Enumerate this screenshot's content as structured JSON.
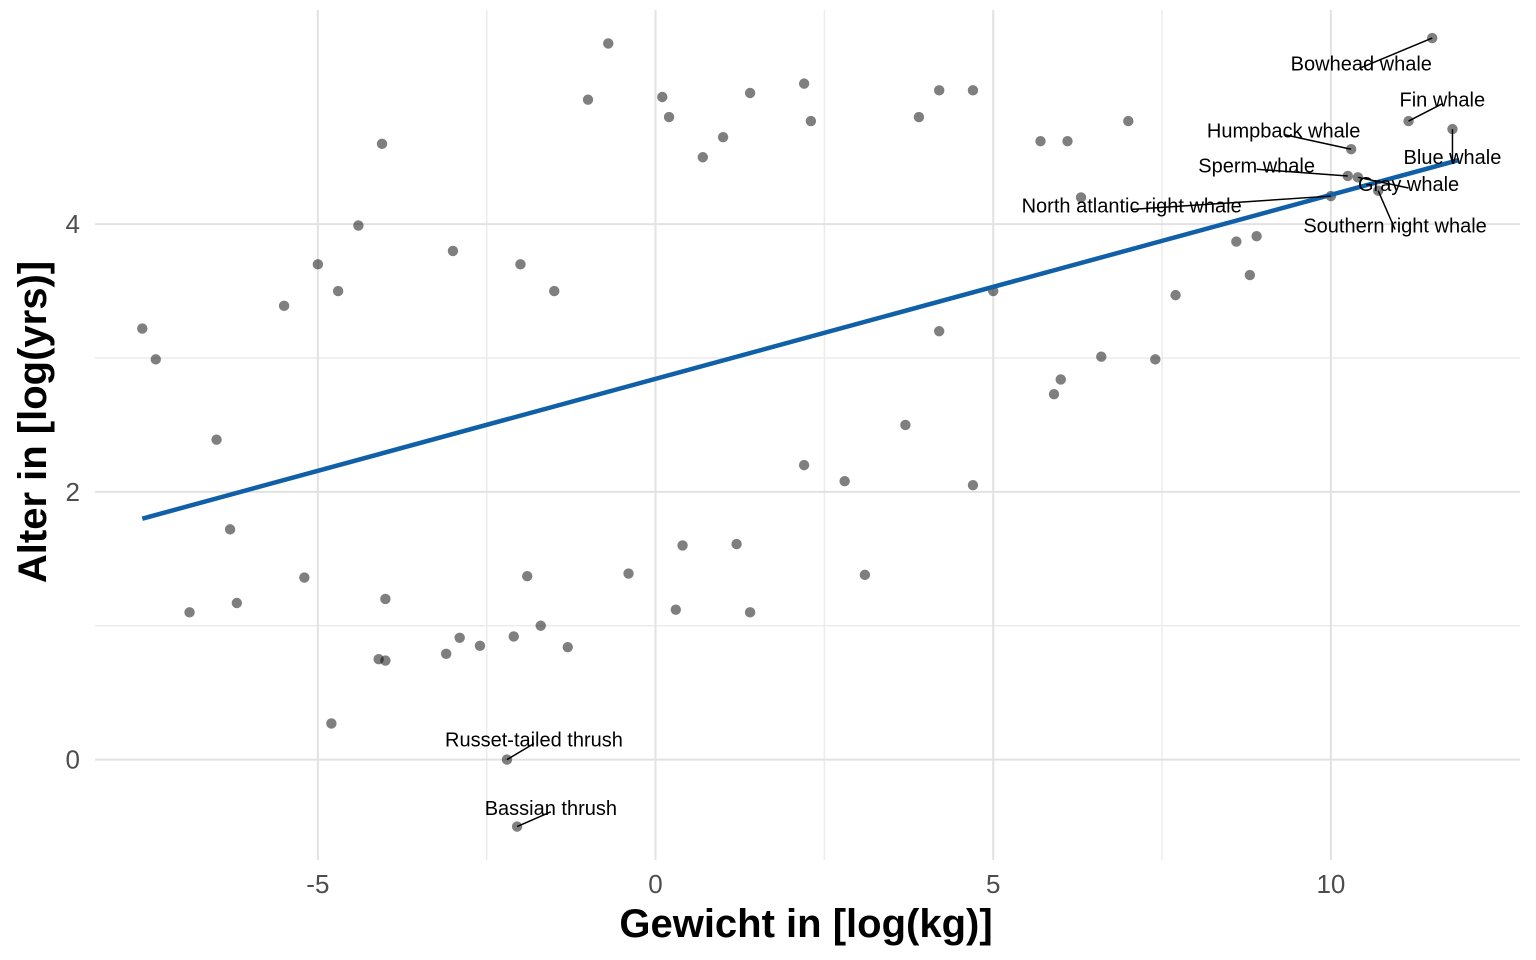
{
  "chart_data": {
    "type": "scatter",
    "title": "",
    "xlabel": "Gewicht in [log(kg)]",
    "ylabel": "Alter in [log(yrs)]",
    "xlim": [
      -8.3,
      12.8
    ],
    "ylim": [
      -0.75,
      5.6
    ],
    "x_ticks": [
      {
        "value": -5,
        "label": "-5"
      },
      {
        "value": 0,
        "label": "0"
      },
      {
        "value": 5,
        "label": "5"
      },
      {
        "value": 10,
        "label": "10"
      }
    ],
    "y_ticks": [
      {
        "value": 0,
        "label": "0"
      },
      {
        "value": 2,
        "label": "2"
      },
      {
        "value": 4,
        "label": "4"
      }
    ],
    "grid": true,
    "point_color": "#000000",
    "point_opacity": 0.5,
    "line_color": "#1060a8",
    "regression_line": {
      "x": [
        -7.6,
        11.9
      ],
      "y": [
        1.8,
        4.48
      ]
    },
    "points": [
      [
        -7.6,
        3.22
      ],
      [
        -7.4,
        2.99
      ],
      [
        -6.9,
        1.1
      ],
      [
        -6.5,
        2.39
      ],
      [
        -6.3,
        1.72
      ],
      [
        -6.2,
        1.17
      ],
      [
        -4.8,
        0.27
      ],
      [
        -4.1,
        0.75
      ],
      [
        -4.0,
        0.74
      ],
      [
        -3.1,
        0.79
      ],
      [
        -2.9,
        0.91
      ],
      [
        -2.6,
        0.85
      ],
      [
        -2.1,
        0.92
      ],
      [
        -1.7,
        1.0
      ],
      [
        -1.3,
        0.84
      ],
      [
        -4.05,
        4.6
      ],
      [
        -0.7,
        5.35
      ],
      [
        -1.0,
        4.93
      ],
      [
        0.1,
        4.95
      ],
      [
        1.4,
        4.98
      ],
      [
        2.2,
        5.05
      ],
      [
        4.2,
        5.0
      ],
      [
        4.7,
        5.0
      ],
      [
        2.3,
        4.77
      ],
      [
        3.9,
        4.8
      ],
      [
        7.0,
        4.77
      ],
      [
        1.0,
        4.65
      ],
      [
        5.7,
        4.62
      ],
      [
        6.1,
        4.62
      ],
      [
        -4.4,
        3.99
      ],
      [
        0.2,
        4.8
      ],
      [
        0.7,
        4.5
      ],
      [
        6.3,
        4.2
      ],
      [
        7.7,
        3.47
      ],
      [
        8.8,
        3.62
      ],
      [
        8.6,
        3.87
      ],
      [
        8.9,
        3.91
      ],
      [
        7.4,
        2.99
      ],
      [
        3.1,
        1.38
      ],
      [
        1.4,
        1.1
      ],
      [
        0.3,
        1.12
      ],
      [
        -0.4,
        1.39
      ],
      [
        4.7,
        2.05
      ],
      [
        2.8,
        2.08
      ],
      [
        -5.2,
        1.36
      ],
      [
        -4.0,
        1.2
      ],
      [
        -1.9,
        1.37
      ],
      [
        0.4,
        1.6
      ],
      [
        1.2,
        1.61
      ],
      [
        -3.0,
        3.8
      ],
      [
        -2.0,
        3.7
      ],
      [
        -1.5,
        3.5
      ],
      [
        6.6,
        3.01
      ],
      [
        6.0,
        2.84
      ],
      [
        5.9,
        2.73
      ],
      [
        -5.5,
        3.39
      ],
      [
        -5.0,
        3.7
      ],
      [
        -4.7,
        3.5
      ],
      [
        5.0,
        3.5
      ],
      [
        4.2,
        3.2
      ],
      [
        3.7,
        2.5
      ],
      [
        2.2,
        2.2
      ]
    ],
    "annotations": [
      {
        "label": "Bowhead whale",
        "x": 11.5,
        "y": 5.39,
        "lx": 10.45,
        "ly": 5.2
      },
      {
        "label": "Fin whale",
        "x": 11.15,
        "y": 4.77,
        "lx": 11.65,
        "ly": 4.93
      },
      {
        "label": "Humpback whale",
        "x": 10.3,
        "y": 4.56,
        "lx": 9.3,
        "ly": 4.7
      },
      {
        "label": "Blue whale",
        "x": 11.8,
        "y": 4.71,
        "lx": 11.8,
        "ly": 4.5
      },
      {
        "label": "Sperm whale",
        "x": 10.25,
        "y": 4.36,
        "lx": 8.9,
        "ly": 4.44
      },
      {
        "label": "Gray whale",
        "x": 10.4,
        "y": 4.35,
        "lx": 11.15,
        "ly": 4.3
      },
      {
        "label": "North atlantic right whale",
        "x": 10.0,
        "y": 4.21,
        "lx": 7.05,
        "ly": 4.14
      },
      {
        "label": "Southern right whale",
        "x": 10.7,
        "y": 4.25,
        "lx": 10.95,
        "ly": 3.99
      },
      {
        "label": "Russet-tailed thrush",
        "x": -2.2,
        "y": 0.0,
        "lx": -1.8,
        "ly": 0.15
      },
      {
        "label": "Bassian thrush",
        "x": -2.05,
        "y": -0.5,
        "lx": -1.55,
        "ly": -0.36
      }
    ]
  }
}
